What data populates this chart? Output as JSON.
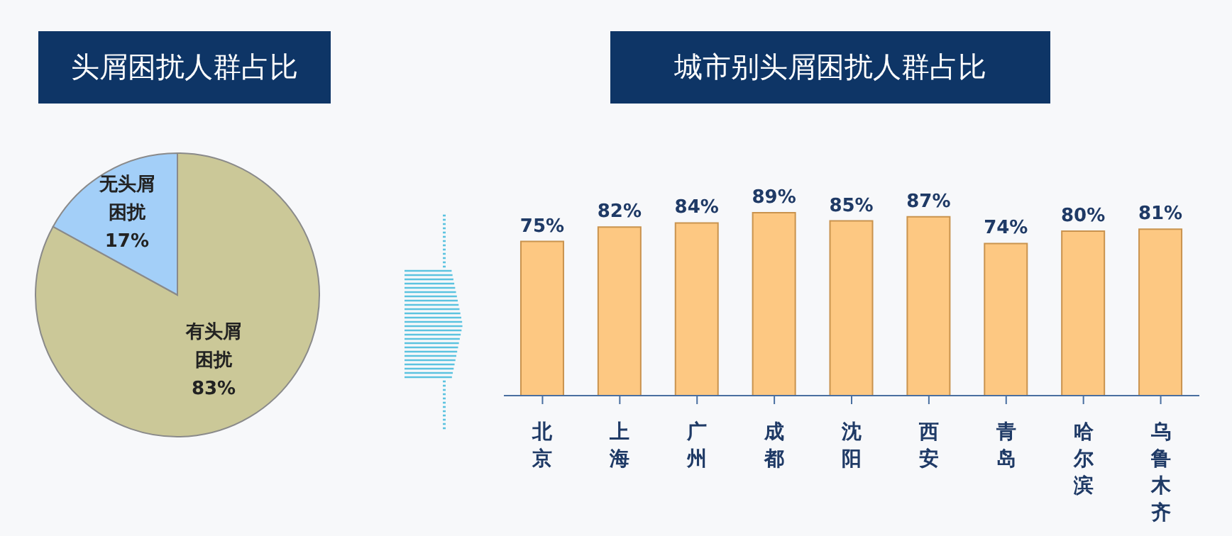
{
  "chart_data": [
    {
      "type": "pie",
      "title": "头屑困扰人群占比",
      "categories": [
        "有头屑困扰",
        "无头屑困扰"
      ],
      "values": [
        83,
        17
      ],
      "colors": [
        "#cbc898",
        "#a3cff8"
      ],
      "value_labels": [
        "83%",
        "17%"
      ],
      "legend": false
    },
    {
      "type": "bar",
      "title": "城市别头屑困扰人群占比",
      "categories": [
        "北京",
        "上海",
        "广州",
        "成都",
        "沈阳",
        "西安",
        "青岛",
        "哈尔滨",
        "乌鲁木齐"
      ],
      "values": [
        75,
        82,
        84,
        89,
        85,
        87,
        74,
        80,
        81
      ],
      "color": "#fdc882",
      "value_labels": [
        "75%",
        "82%",
        "84%",
        "89%",
        "85%",
        "87%",
        "74%",
        "80%",
        "81%"
      ],
      "legend": false,
      "grid": false
    }
  ]
}
